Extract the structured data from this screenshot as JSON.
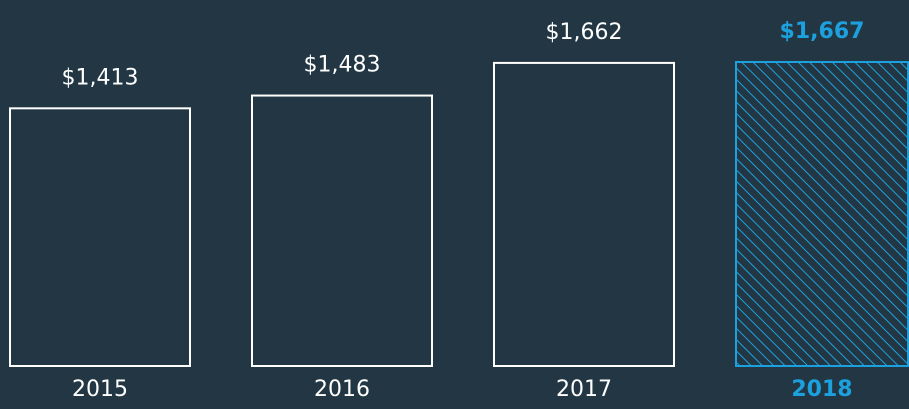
{
  "chart_data": {
    "type": "bar",
    "categories": [
      "2015",
      "2016",
      "2017",
      "2018"
    ],
    "values": [
      1413,
      1483,
      1662,
      1667
    ],
    "value_labels": [
      "$1,413",
      "$1,483",
      "$1,662",
      "$1,667"
    ],
    "color": "#ffffff",
    "highlight_color": "#1da1de",
    "highlight": [
      false,
      false,
      false,
      true
    ],
    "background": "#223743"
  }
}
